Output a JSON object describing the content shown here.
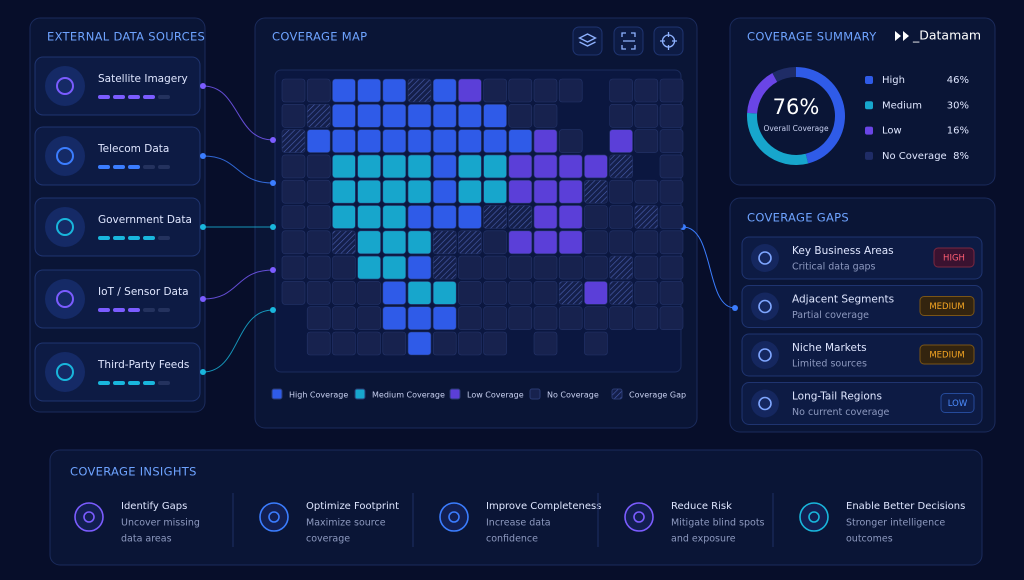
{
  "sources": {
    "title": "EXTERNAL DATA SOURCES",
    "items": [
      "Satellite Imagery",
      "Telecom Data",
      "Government Data",
      "IoT / Sensor Data",
      "Third-Party Feeds"
    ]
  },
  "map": {
    "title": "COVERAGE MAP",
    "legend": [
      "High Coverage",
      "Medium Coverage",
      "Low Coverage",
      "No Coverage",
      "Coverage Gap"
    ]
  },
  "brand": "_Datamam",
  "center_text": "76%",
  "center_caption": "Overall Coverage",
  "chart_data": {
    "type": "pie",
    "title": "COVERAGE SUMMARY",
    "categories": [
      "High",
      "Medium",
      "Low",
      "No Coverage"
    ],
    "values": [
      46,
      30,
      16,
      8
    ],
    "value_labels": [
      "46%",
      "30%",
      "16%",
      "8%"
    ],
    "colors": [
      "#2f5be8",
      "#17a6cc",
      "#6a45e6",
      "#1f2c66"
    ]
  },
  "gaps": {
    "title": "COVERAGE GAPS",
    "items": [
      {
        "title": "Key Business Areas",
        "desc": "Critical data gaps",
        "badge": "HIGH"
      },
      {
        "title": "Adjacent Segments",
        "desc": "Partial coverage",
        "badge": "MEDIUM"
      },
      {
        "title": "Niche Markets",
        "desc": "Limited sources",
        "badge": "MEDIUM"
      },
      {
        "title": "Long-Tail Regions",
        "desc": "No current coverage",
        "badge": "LOW"
      }
    ]
  },
  "insights": {
    "title": "COVERAGE INSIGHTS",
    "items": [
      {
        "title": "Identify Gaps",
        "desc": [
          "Uncover missing",
          "data areas"
        ]
      },
      {
        "title": "Optimize Footprint",
        "desc": [
          "Maximize source",
          "coverage"
        ]
      },
      {
        "title": "Improve Completeness",
        "desc": [
          "Increase data",
          "confidence"
        ]
      },
      {
        "title": "Reduce Risk",
        "desc": [
          "Mitigate blind spots",
          "and exposure"
        ]
      },
      {
        "title": "Enable Better Decisions",
        "desc": [
          "Stronger intelligence",
          "outcomes"
        ]
      }
    ]
  }
}
